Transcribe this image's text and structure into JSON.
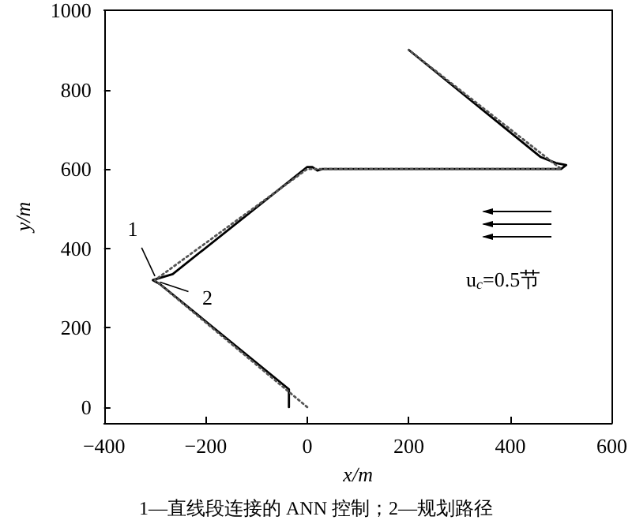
{
  "chart_data": {
    "type": "line",
    "xlabel": "x/m",
    "ylabel": "y/m",
    "xlim": [
      -400,
      600
    ],
    "ylim": [
      -40,
      1000
    ],
    "xticks": [
      -400,
      -200,
      0,
      200,
      400,
      600
    ],
    "yticks": [
      0,
      200,
      400,
      600,
      800,
      1000
    ],
    "grid": false,
    "marker": "none",
    "series": [
      {
        "color": "#000000",
        "line_style": "solid",
        "x": [
          -36,
          -36,
          -290,
          -304,
          -265,
          0,
          10,
          20,
          30,
          450,
          500,
          510,
          490,
          460,
          200
        ],
        "values": [
          0,
          45,
          310,
          320,
          335,
          605,
          605,
          596,
          600,
          600,
          600,
          610,
          615,
          630,
          900
        ]
      },
      {
        "color": "#555555",
        "line_style": "dotted",
        "x": [
          0,
          -300,
          0,
          500,
          200
        ],
        "values": [
          0,
          320,
          600,
          600,
          900
        ]
      }
    ],
    "annotations": [
      {
        "text": "1",
        "x": -300,
        "y": 330
      },
      {
        "text": "2",
        "x": -290,
        "y": 315
      },
      "u$_{c}$=0.5节",
      "1—直线段连接的 ANN 控制；2—规划路径"
    ]
  }
}
